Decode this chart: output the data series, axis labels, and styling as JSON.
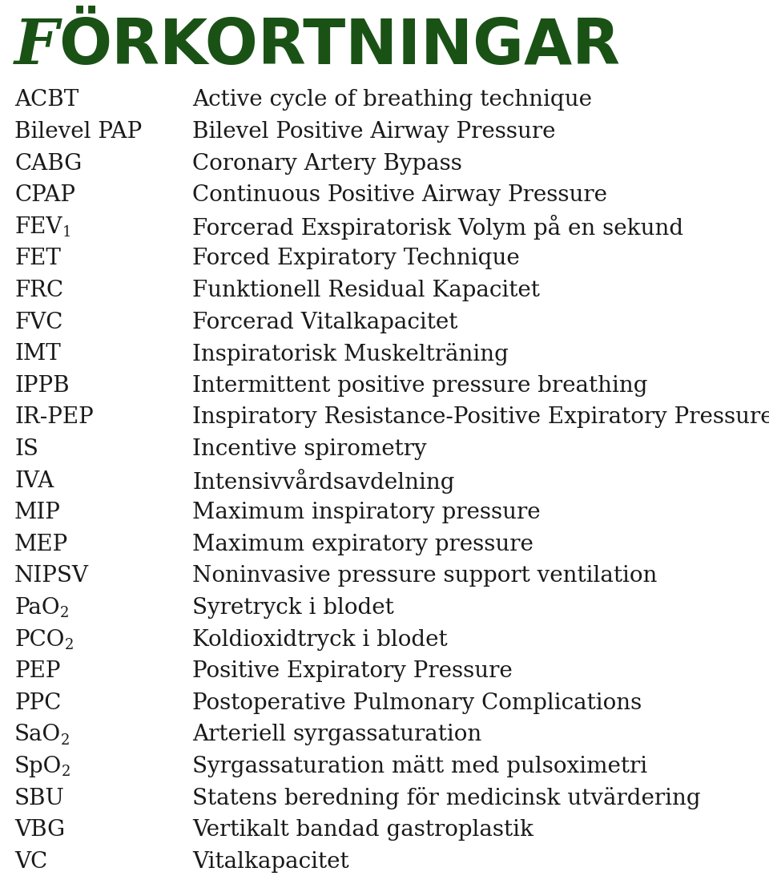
{
  "title_first": "F",
  "title_rest": "ÖRKORTNINGAR",
  "title_color": "#1a5216",
  "bg_color": "#ffffff",
  "abbrev_color": "#1a1a1a",
  "desc_color": "#1a1a1a",
  "font_size": 20,
  "title_font_size": 56,
  "entries": [
    {
      "abbrev_main": "ACBT",
      "abbrev_sub": "",
      "desc": "Active cycle of breathing technique"
    },
    {
      "abbrev_main": "Bilevel PAP",
      "abbrev_sub": "",
      "desc": "Bilevel Positive Airway Pressure"
    },
    {
      "abbrev_main": "CABG",
      "abbrev_sub": "",
      "desc": "Coronary Artery Bypass"
    },
    {
      "abbrev_main": "CPAP",
      "abbrev_sub": "",
      "desc": "Continuous Positive Airway Pressure"
    },
    {
      "abbrev_main": "FEV",
      "abbrev_sub": "1",
      "desc": "Forcerad Exspiratorisk Volym på en sekund"
    },
    {
      "abbrev_main": "FET",
      "abbrev_sub": "",
      "desc": "Forced Expiratory Technique"
    },
    {
      "abbrev_main": "FRC",
      "abbrev_sub": "",
      "desc": "Funktionell Residual Kapacitet"
    },
    {
      "abbrev_main": "FVC",
      "abbrev_sub": "",
      "desc": "Forcerad Vitalkapacitet"
    },
    {
      "abbrev_main": "IMT",
      "abbrev_sub": "",
      "desc": "Inspiratorisk Muskelträning"
    },
    {
      "abbrev_main": "IPPB",
      "abbrev_sub": "",
      "desc": "Intermittent positive pressure breathing"
    },
    {
      "abbrev_main": "IR-PEP",
      "abbrev_sub": "",
      "desc": "Inspiratory Resistance-Positive Expiratory Pressure"
    },
    {
      "abbrev_main": "IS",
      "abbrev_sub": "",
      "desc": "Incentive spirometry"
    },
    {
      "abbrev_main": "IVA",
      "abbrev_sub": "",
      "desc": "Intensivvårdsavdelning"
    },
    {
      "abbrev_main": "MIP",
      "abbrev_sub": "",
      "desc": "Maximum inspiratory pressure"
    },
    {
      "abbrev_main": "MEP",
      "abbrev_sub": "",
      "desc": "Maximum expiratory pressure"
    },
    {
      "abbrev_main": "NIPSV",
      "abbrev_sub": "",
      "desc": "Noninvasive pressure support ventilation"
    },
    {
      "abbrev_main": "PaO",
      "abbrev_sub": "2",
      "desc": "Syretryck i blodet"
    },
    {
      "abbrev_main": "PCO",
      "abbrev_sub": "2",
      "desc": "Koldioxidtryck i blodet"
    },
    {
      "abbrev_main": "PEP",
      "abbrev_sub": "",
      "desc": "Positive Expiratory Pressure"
    },
    {
      "abbrev_main": "PPC",
      "abbrev_sub": "",
      "desc": "Postoperative Pulmonary Complications"
    },
    {
      "abbrev_main": "SaO",
      "abbrev_sub": "2",
      "desc": "Arteriell syrgassaturation"
    },
    {
      "abbrev_main": "SpO",
      "abbrev_sub": "2",
      "desc": "Syrgassaturation mätt med pulsoximetri"
    },
    {
      "abbrev_main": "SBU",
      "abbrev_sub": "",
      "desc": "Statens beredning för medicinsk utvärdering"
    },
    {
      "abbrev_main": "VBG",
      "abbrev_sub": "",
      "desc": "Vertikalt bandad gastroplastik"
    },
    {
      "abbrev_main": "VC",
      "abbrev_sub": "",
      "desc": "Vitalkapacitet"
    }
  ]
}
